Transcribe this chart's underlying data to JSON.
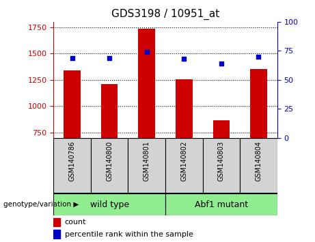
{
  "title": "GDS3198 / 10951_at",
  "samples": [
    "GSM140786",
    "GSM140800",
    "GSM140801",
    "GSM140802",
    "GSM140803",
    "GSM140804"
  ],
  "counts": [
    1340,
    1210,
    1735,
    1255,
    870,
    1355
  ],
  "percentile_ranks": [
    69,
    69,
    74,
    68,
    64,
    70
  ],
  "ylim_left": [
    700,
    1800
  ],
  "ylim_right": [
    0,
    100
  ],
  "yticks_left": [
    750,
    1000,
    1250,
    1500,
    1750
  ],
  "yticks_right": [
    0,
    25,
    50,
    75,
    100
  ],
  "bar_color": "#cc0000",
  "dot_color": "#0000cc",
  "wild_type_indices": [
    0,
    1,
    2
  ],
  "mutant_indices": [
    3,
    4,
    5
  ],
  "wild_type_label": "wild type",
  "mutant_label": "Abf1 mutant",
  "genotype_label": "genotype/variation",
  "group_bg_color": "#90ee90",
  "sample_bg_color": "#d3d3d3",
  "legend_count_label": "count",
  "legend_pct_label": "percentile rank within the sample",
  "bar_bottom": 700,
  "bar_width": 0.45
}
